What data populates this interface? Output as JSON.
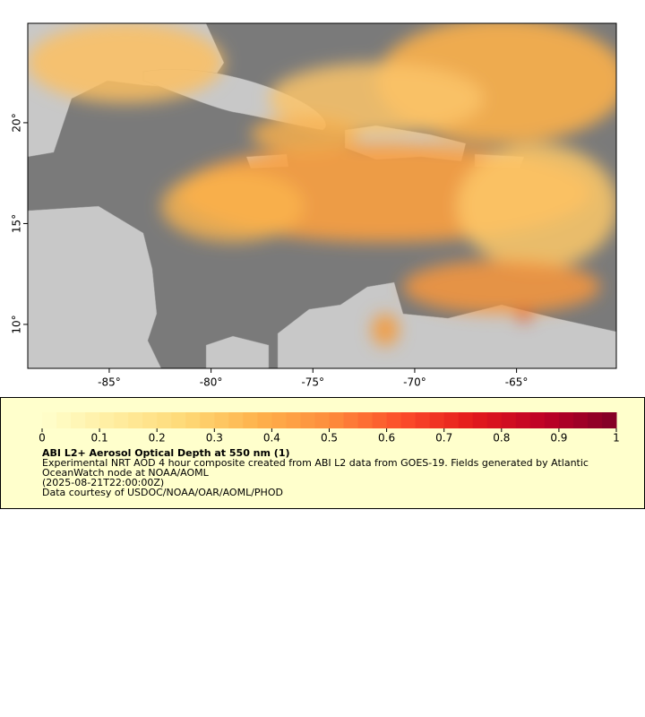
{
  "map": {
    "xlim": [
      -89,
      -60.1
    ],
    "ylim": [
      7.82,
      24.93
    ],
    "xticks": [
      {
        "value": -85,
        "label": "-85°"
      },
      {
        "value": -80,
        "label": "-80°"
      },
      {
        "value": -75,
        "label": "-75°"
      },
      {
        "value": -70,
        "label": "-70°"
      },
      {
        "value": -65,
        "label": "-65°"
      }
    ],
    "yticks": [
      {
        "value": 10,
        "label": "10°"
      },
      {
        "value": 15,
        "label": "15°"
      },
      {
        "value": 20,
        "label": "20°"
      }
    ]
  },
  "colorbar": {
    "range": [
      0,
      1
    ],
    "ticks": [
      0,
      0.1,
      0.2,
      0.3,
      0.4,
      0.5,
      0.6,
      0.7,
      0.8,
      0.9,
      1
    ],
    "colors": [
      "#ffffcc",
      "#ffeda0",
      "#fed976",
      "#feb24c",
      "#fd8d3c",
      "#fc4e2a",
      "#e31a1c",
      "#bd0026",
      "#800026"
    ]
  },
  "legend": {
    "title": "ABI L2+ Aerosol Optical Depth at 550 nm (1)",
    "description": "Experimental NRT AOD 4 hour composite created from ABI L2 data from GOES-19. Fields generated by Atlantic OceanWatch node at NOAA/AOML",
    "time": "(2025-08-21T22:00:00Z)",
    "credit": "Data courtesy of USDOC/NOAA/OAR/AOML/PHOD"
  }
}
